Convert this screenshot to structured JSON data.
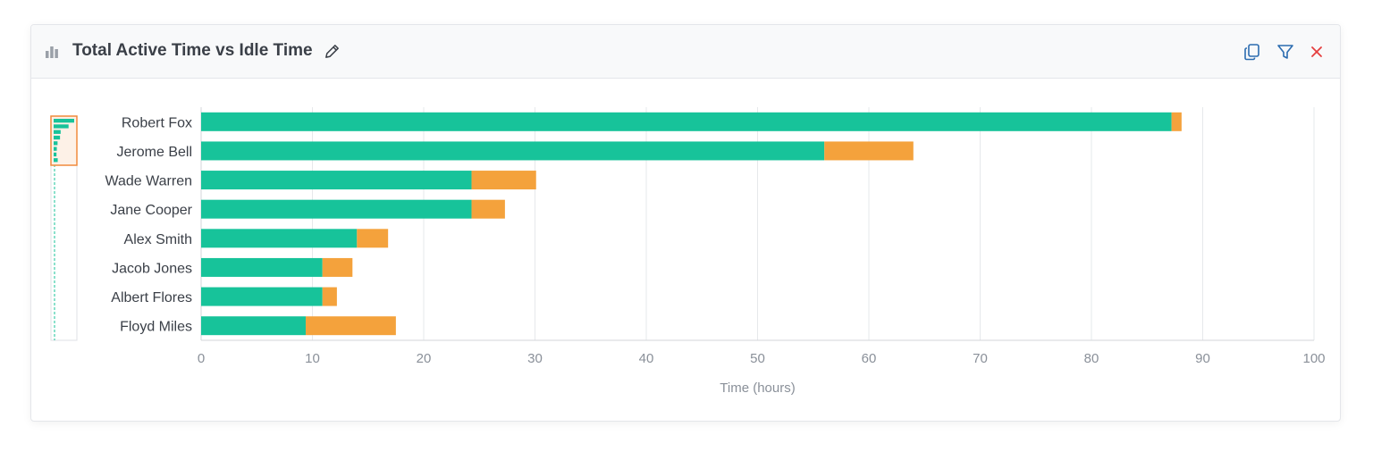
{
  "widget": {
    "title": "Total Active Time vs Idle Time",
    "title_icon": "bar-chart-icon",
    "edit_icon": "pencil-icon",
    "actions": [
      {
        "name": "copy-button",
        "icon": "copy-icon",
        "color": "#2b6cb0"
      },
      {
        "name": "filter-button",
        "icon": "filter-icon",
        "color": "#2b6cb0"
      },
      {
        "name": "close-button",
        "icon": "close-icon",
        "color": "#e53e3e"
      }
    ]
  },
  "chart_data": {
    "type": "bar",
    "orientation": "horizontal",
    "stacked": true,
    "categories": [
      "Robert Fox",
      "Jerome Bell",
      "Wade Warren",
      "Jane Cooper",
      "Alex Smith",
      "Jacob Jones",
      "Albert Flores",
      "Floyd Miles"
    ],
    "series": [
      {
        "values": [
          87.2,
          56,
          24.3,
          24.3,
          14,
          10.9,
          10.9,
          9.4
        ],
        "color": "#17c39a"
      },
      {
        "values": [
          0.9,
          8,
          5.8,
          3,
          2.8,
          2.7,
          1.3,
          8.1
        ],
        "color": "#f4a23c"
      }
    ],
    "xlabel": "Time (hours)",
    "xlim": [
      0,
      100
    ],
    "xticks": [
      0,
      10,
      20,
      30,
      40,
      50,
      60,
      70,
      80,
      90,
      100
    ],
    "grid": true,
    "zoom_brush": {
      "color": "#f08a3c"
    }
  }
}
